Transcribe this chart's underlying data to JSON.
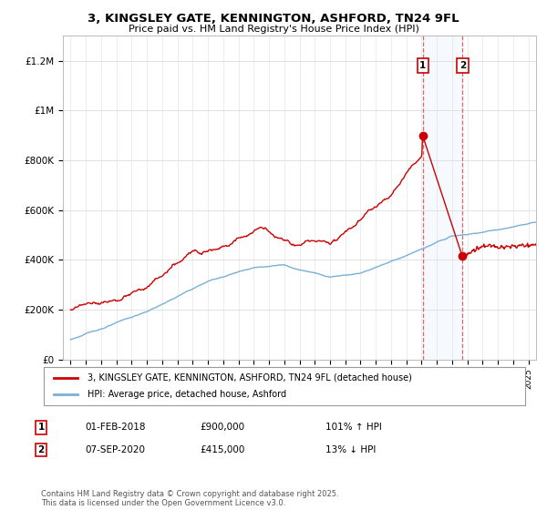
{
  "title": "3, KINGSLEY GATE, KENNINGTON, ASHFORD, TN24 9FL",
  "subtitle": "Price paid vs. HM Land Registry's House Price Index (HPI)",
  "ylabel_ticks": [
    "£0",
    "£200K",
    "£400K",
    "£600K",
    "£800K",
    "£1M",
    "£1.2M"
  ],
  "ytick_values": [
    0,
    200000,
    400000,
    600000,
    800000,
    1000000,
    1200000
  ],
  "ylim": [
    0,
    1300000
  ],
  "xlim_start": 1994.5,
  "xlim_end": 2025.5,
  "sale1_date": 2018.08,
  "sale1_price": 900000,
  "sale1_label": "1",
  "sale2_date": 2020.68,
  "sale2_price": 415000,
  "sale2_label": "2",
  "line_color_property": "#cc0000",
  "line_color_hpi": "#7ab0d4",
  "shaded_color": "#ddeeff",
  "dashed_color": "#dd6666",
  "legend_property": "3, KINGSLEY GATE, KENNINGTON, ASHFORD, TN24 9FL (detached house)",
  "legend_hpi": "HPI: Average price, detached house, Ashford",
  "annotation1_date": "01-FEB-2018",
  "annotation1_price": "£900,000",
  "annotation1_hpi": "101% ↑ HPI",
  "annotation2_date": "07-SEP-2020",
  "annotation2_price": "£415,000",
  "annotation2_hpi": "13% ↓ HPI",
  "footer": "Contains HM Land Registry data © Crown copyright and database right 2025.\nThis data is licensed under the Open Government Licence v3.0.",
  "plot_bg_color": "#ffffff",
  "grid_color": "#dddddd"
}
